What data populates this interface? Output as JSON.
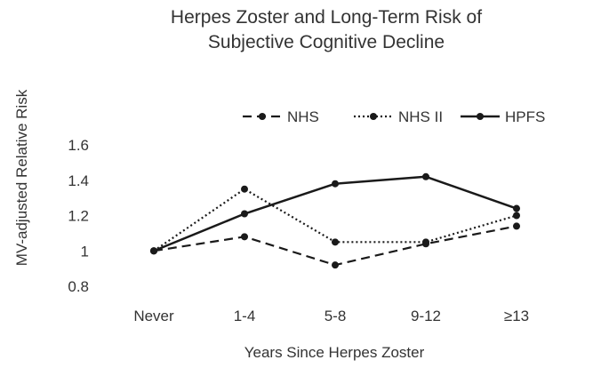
{
  "chart_data": {
    "type": "line",
    "title_line1": "Herpes Zoster and Long-Term Risk of",
    "title_line2": "Subjective Cognitive Decline",
    "xlabel": "Years Since Herpes Zoster",
    "ylabel": "MV-adjusted Relative Risk",
    "categories": [
      "Never",
      "1-4",
      "5-8",
      "9-12",
      "≥13"
    ],
    "ylim": [
      0.8,
      1.6
    ],
    "yticks": [
      "0.8",
      "1",
      "1.2",
      "1.4",
      "1.6"
    ],
    "yticks_values": [
      0.8,
      1.0,
      1.2,
      1.4,
      1.6
    ],
    "legend_position": "top",
    "grid": false,
    "series": [
      {
        "name": "NHS",
        "style": "dashed",
        "values": [
          1.0,
          1.08,
          0.92,
          1.04,
          1.14
        ]
      },
      {
        "name": "NHS II",
        "style": "dotted",
        "values": [
          1.0,
          1.35,
          1.05,
          1.05,
          1.2
        ]
      },
      {
        "name": "HPFS",
        "style": "solid",
        "values": [
          1.0,
          1.21,
          1.38,
          1.42,
          1.24
        ]
      }
    ],
    "line_color": "#1a1a1a"
  }
}
